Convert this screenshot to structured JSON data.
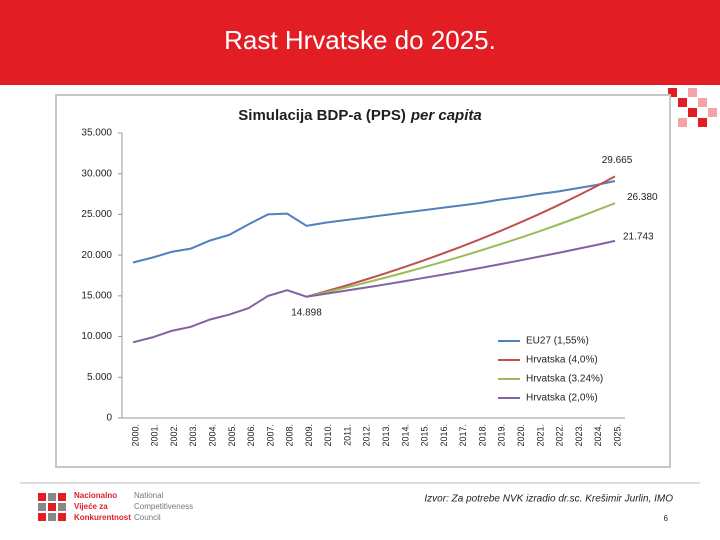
{
  "slide": {
    "title": "Rast Hrvatske do 2025.",
    "source": "Izvor: Za potrebe NVK izradio dr.sc. Krešimir Jurlin, IMO",
    "page_number": "6",
    "logo_text_hr": [
      "Nacionalno",
      "Vijeće za",
      "Konkurentnost"
    ],
    "logo_text_en": [
      "National",
      "Competitiveness",
      "Council"
    ]
  },
  "chart_data": {
    "type": "line",
    "title": "Simulacija  BDP-a (PPS)",
    "title_emphasis": "per capita",
    "categories": [
      "2000.",
      "2001.",
      "2002.",
      "2003.",
      "2004.",
      "2005.",
      "2006.",
      "2007.",
      "2008.",
      "2009.",
      "2010.",
      "2011.",
      "2012.",
      "2013.",
      "2014.",
      "2015.",
      "2016.",
      "2017.",
      "2018.",
      "2019.",
      "2020.",
      "2021.",
      "2022.",
      "2023.",
      "2024.",
      "2025."
    ],
    "ylim": [
      0,
      35000
    ],
    "yticks": [
      0,
      {
        "value": 5000,
        "label": "5.000"
      },
      {
        "value": 10000,
        "label": "10.000"
      },
      {
        "value": 15000,
        "label": "15.000"
      },
      {
        "value": 20000,
        "label": "20.000"
      },
      {
        "value": 25000,
        "label": "25.000"
      },
      {
        "value": 30000,
        "label": "30.000"
      },
      {
        "value": 35000,
        "label": "35.000"
      }
    ],
    "grid": false,
    "legend": "lower right",
    "series": [
      {
        "name": "EU27 (1,55%)",
        "color": "#4f81bd",
        "values": [
          19100,
          19700,
          20400,
          20800,
          21800,
          22500,
          23800,
          25000,
          25100,
          23600,
          24000,
          24300,
          24600,
          24900,
          25200,
          25500,
          25800,
          26100,
          26400,
          26800,
          27100,
          27500,
          27800,
          28200,
          28600,
          29100
        ]
      },
      {
        "name": "Hrvatska (4,0%)",
        "color": "#c0504d",
        "values": [
          null,
          null,
          null,
          null,
          null,
          null,
          null,
          null,
          null,
          14898,
          15553,
          16237,
          16951,
          17697,
          18475,
          19288,
          20136,
          21022,
          21946,
          22912,
          23919,
          24971,
          26070,
          27216,
          28413,
          29665
        ],
        "value_labels": [
          null,
          null,
          null,
          null,
          null,
          null,
          null,
          null,
          null,
          null,
          null,
          null,
          null,
          null,
          null,
          null,
          null,
          null,
          null,
          null,
          null,
          null,
          null,
          null,
          null,
          "29.665"
        ]
      },
      {
        "name": "Hrvatska (3.24%)",
        "color": "#9bbb59",
        "values": [
          null,
          null,
          null,
          null,
          null,
          null,
          null,
          null,
          null,
          14898,
          15440,
          16001,
          16583,
          17186,
          17811,
          18459,
          19130,
          19826,
          20547,
          21294,
          22069,
          22871,
          23703,
          24565,
          25458,
          26380
        ],
        "value_labels": [
          null,
          null,
          null,
          null,
          null,
          null,
          null,
          null,
          null,
          null,
          null,
          null,
          null,
          null,
          null,
          null,
          null,
          null,
          null,
          null,
          null,
          null,
          null,
          null,
          null,
          "26.380"
        ]
      },
      {
        "name": "Hrvatska (2,0%)",
        "color": "#8064a2",
        "values": [
          9300,
          9900,
          10700,
          11200,
          12100,
          12700,
          13500,
          15000,
          15700,
          14898,
          15254,
          15619,
          15992,
          16374,
          16766,
          17167,
          17577,
          17997,
          18427,
          18868,
          19319,
          19781,
          20254,
          20738,
          21234,
          21743
        ],
        "value_labels": [
          null,
          null,
          null,
          null,
          null,
          null,
          null,
          null,
          null,
          "14.898",
          null,
          null,
          null,
          null,
          null,
          null,
          null,
          null,
          null,
          null,
          null,
          null,
          null,
          null,
          null,
          "21.743"
        ]
      }
    ]
  }
}
